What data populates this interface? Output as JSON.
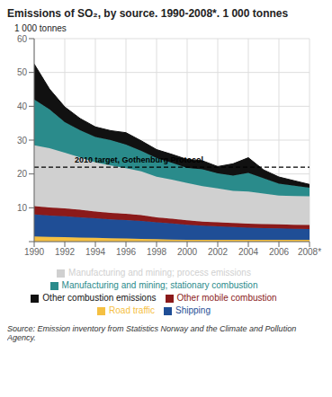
{
  "chart_data": {
    "type": "area",
    "stacked": true,
    "title": "Emissions of SO₂, by source. 1990-2008*. 1 000 tonnes",
    "y_label": "1 000 tonnes",
    "source": "Source: Emission inventory from Statistics Norway and the Climate and Pollution Agency.",
    "x": [
      1990,
      1991,
      1992,
      1993,
      1994,
      1995,
      1996,
      1997,
      1998,
      1999,
      2000,
      2001,
      2002,
      2003,
      2004,
      2005,
      2006,
      2007,
      2008
    ],
    "series": [
      {
        "name": "Road traffic",
        "color": "#F5C042",
        "values": [
          1.5,
          1.4,
          1.3,
          1.2,
          1.1,
          1.0,
          0.9,
          0.8,
          0.7,
          0.6,
          0.5,
          0.5,
          0.5,
          0.5,
          0.5,
          0.5,
          0.5,
          0.5,
          0.5
        ]
      },
      {
        "name": "Shipping",
        "color": "#1F4E96",
        "values": [
          6.5,
          6.3,
          6.2,
          6.0,
          5.8,
          5.6,
          5.5,
          5.3,
          5.0,
          4.8,
          4.5,
          4.2,
          4.0,
          3.8,
          3.6,
          3.5,
          3.4,
          3.3,
          3.2
        ]
      },
      {
        "name": "Other mobile combustion",
        "color": "#8B1A1A",
        "values": [
          2.5,
          2.4,
          2.3,
          2.2,
          2.0,
          1.9,
          1.8,
          1.7,
          1.5,
          1.4,
          1.3,
          1.2,
          1.2,
          1.2,
          1.2,
          1.2,
          1.2,
          1.2,
          1.2
        ]
      },
      {
        "name": "Manufacturing and mining; process emissions",
        "color": "#D0D0D0",
        "values": [
          18.0,
          17.5,
          16.5,
          15.5,
          14.5,
          14.0,
          13.5,
          13.0,
          12.0,
          11.5,
          11.0,
          10.5,
          10.0,
          9.5,
          9.5,
          9.0,
          8.5,
          8.5,
          8.5
        ]
      },
      {
        "name": "Manufacturing and mining; stationary combustion",
        "color": "#2A8B8B",
        "values": [
          13.5,
          11.5,
          9.0,
          8.0,
          7.5,
          7.5,
          7.0,
          6.0,
          5.5,
          5.0,
          4.5,
          5.0,
          4.5,
          4.5,
          5.5,
          4.5,
          3.5,
          3.0,
          2.5
        ]
      },
      {
        "name": "Other combustion emissions",
        "color": "#111111",
        "values": [
          10.5,
          6.0,
          4.5,
          3.5,
          3.0,
          2.8,
          3.5,
          3.0,
          2.5,
          2.5,
          2.5,
          2.5,
          2.0,
          3.5,
          4.5,
          2.5,
          2.0,
          1.5,
          1.0
        ]
      }
    ],
    "reference_lines": [
      {
        "y": 22.0,
        "label": "2010 target, Gothenburg Protocol",
        "color": "#000000",
        "line_style": "dashed"
      }
    ],
    "xlim": [
      1990,
      2008
    ],
    "xticks": [
      1990,
      1992,
      1994,
      1996,
      1998,
      2000,
      2002,
      2004,
      2006,
      {
        "value": 2008,
        "label": "2008*"
      }
    ],
    "ylim": [
      0,
      60
    ],
    "yticks": [
      {
        "value": 0,
        "label": ""
      },
      10,
      20,
      30,
      40,
      50,
      60
    ],
    "grid": true,
    "legend": "bottom"
  }
}
